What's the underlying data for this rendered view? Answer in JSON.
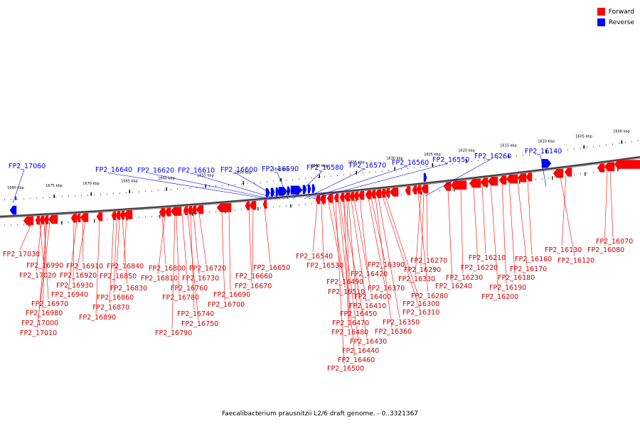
{
  "legend": {
    "forward_label": "Forward",
    "reverse_label": "Reverse",
    "forward_color": "#ff0000",
    "reverse_color": "#0000ff"
  },
  "caption": "Faecalibacterium prausnitzii L2/6 draft genome. - 0..3321367",
  "scale_ticks": [
    "1680 kbp",
    "1675 kbp",
    "1670 kbp",
    "1665 kbp",
    "1660 kbp",
    "1655 kbp",
    "1650 kbp",
    "1645 kbp",
    "1640 kbp",
    "1635 kbp",
    "1630 kbp",
    "1625 kbp",
    "1620 kbp",
    "1615 kbp",
    "1610 kbp",
    "1605 kbp",
    "1600 kbp"
  ],
  "reverse_labels": [
    "FP2_17060",
    "FP2_16640",
    "FP2_16620",
    "FP2_16610",
    "FP2_16600",
    "FP2_16590",
    "FP2_16580",
    "FP2_16570",
    "FP2_16560",
    "FP2_16550",
    "FP2_16260",
    "FP2_16140"
  ],
  "forward_labels": [
    "FP2_17030",
    "FP2_16990",
    "FP2_17020",
    "FP2_16970",
    "FP2_16980",
    "FP2_17000",
    "FP2_17010",
    "FP2_16930",
    "FP2_16940",
    "FP2_16910",
    "FP2_16920",
    "FP2_16890",
    "FP2_16870",
    "FP2_16860",
    "FP2_16850",
    "FP2_16830",
    "FP2_16840",
    "FP2_16800",
    "FP2_16810",
    "FP2_16790",
    "FP2_16780",
    "FP2_16760",
    "FP2_16750",
    "FP2_16740",
    "FP2_16730",
    "FP2_16720",
    "FP2_16700",
    "FP2_16690",
    "FP2_16670",
    "FP2_16660",
    "FP2_16650",
    "FP2_16540",
    "FP2_16530",
    "FP2_16510",
    "FP2_16490",
    "FP2_16500",
    "FP2_16460",
    "FP2_16440",
    "FP2_16430",
    "FP2_16480",
    "FP2_16470",
    "FP2_16450",
    "FP2_16410",
    "FP2_16400",
    "FP2_16420",
    "FP2_16370",
    "FP2_16390",
    "FP2_16360",
    "FP2_16350",
    "FP2_16310",
    "FP2_16300",
    "FP2_16280",
    "FP2_16330",
    "FP2_16290",
    "FP2_16270",
    "FP2_16240",
    "FP2_16230",
    "FP2_16220",
    "FP2_16210",
    "FP2_16200",
    "FP2_16190",
    "FP2_16180",
    "FP2_16170",
    "FP2_16160",
    "FP2_16120",
    "FP2_16130",
    "FP2_16080",
    "FP2_16070"
  ]
}
